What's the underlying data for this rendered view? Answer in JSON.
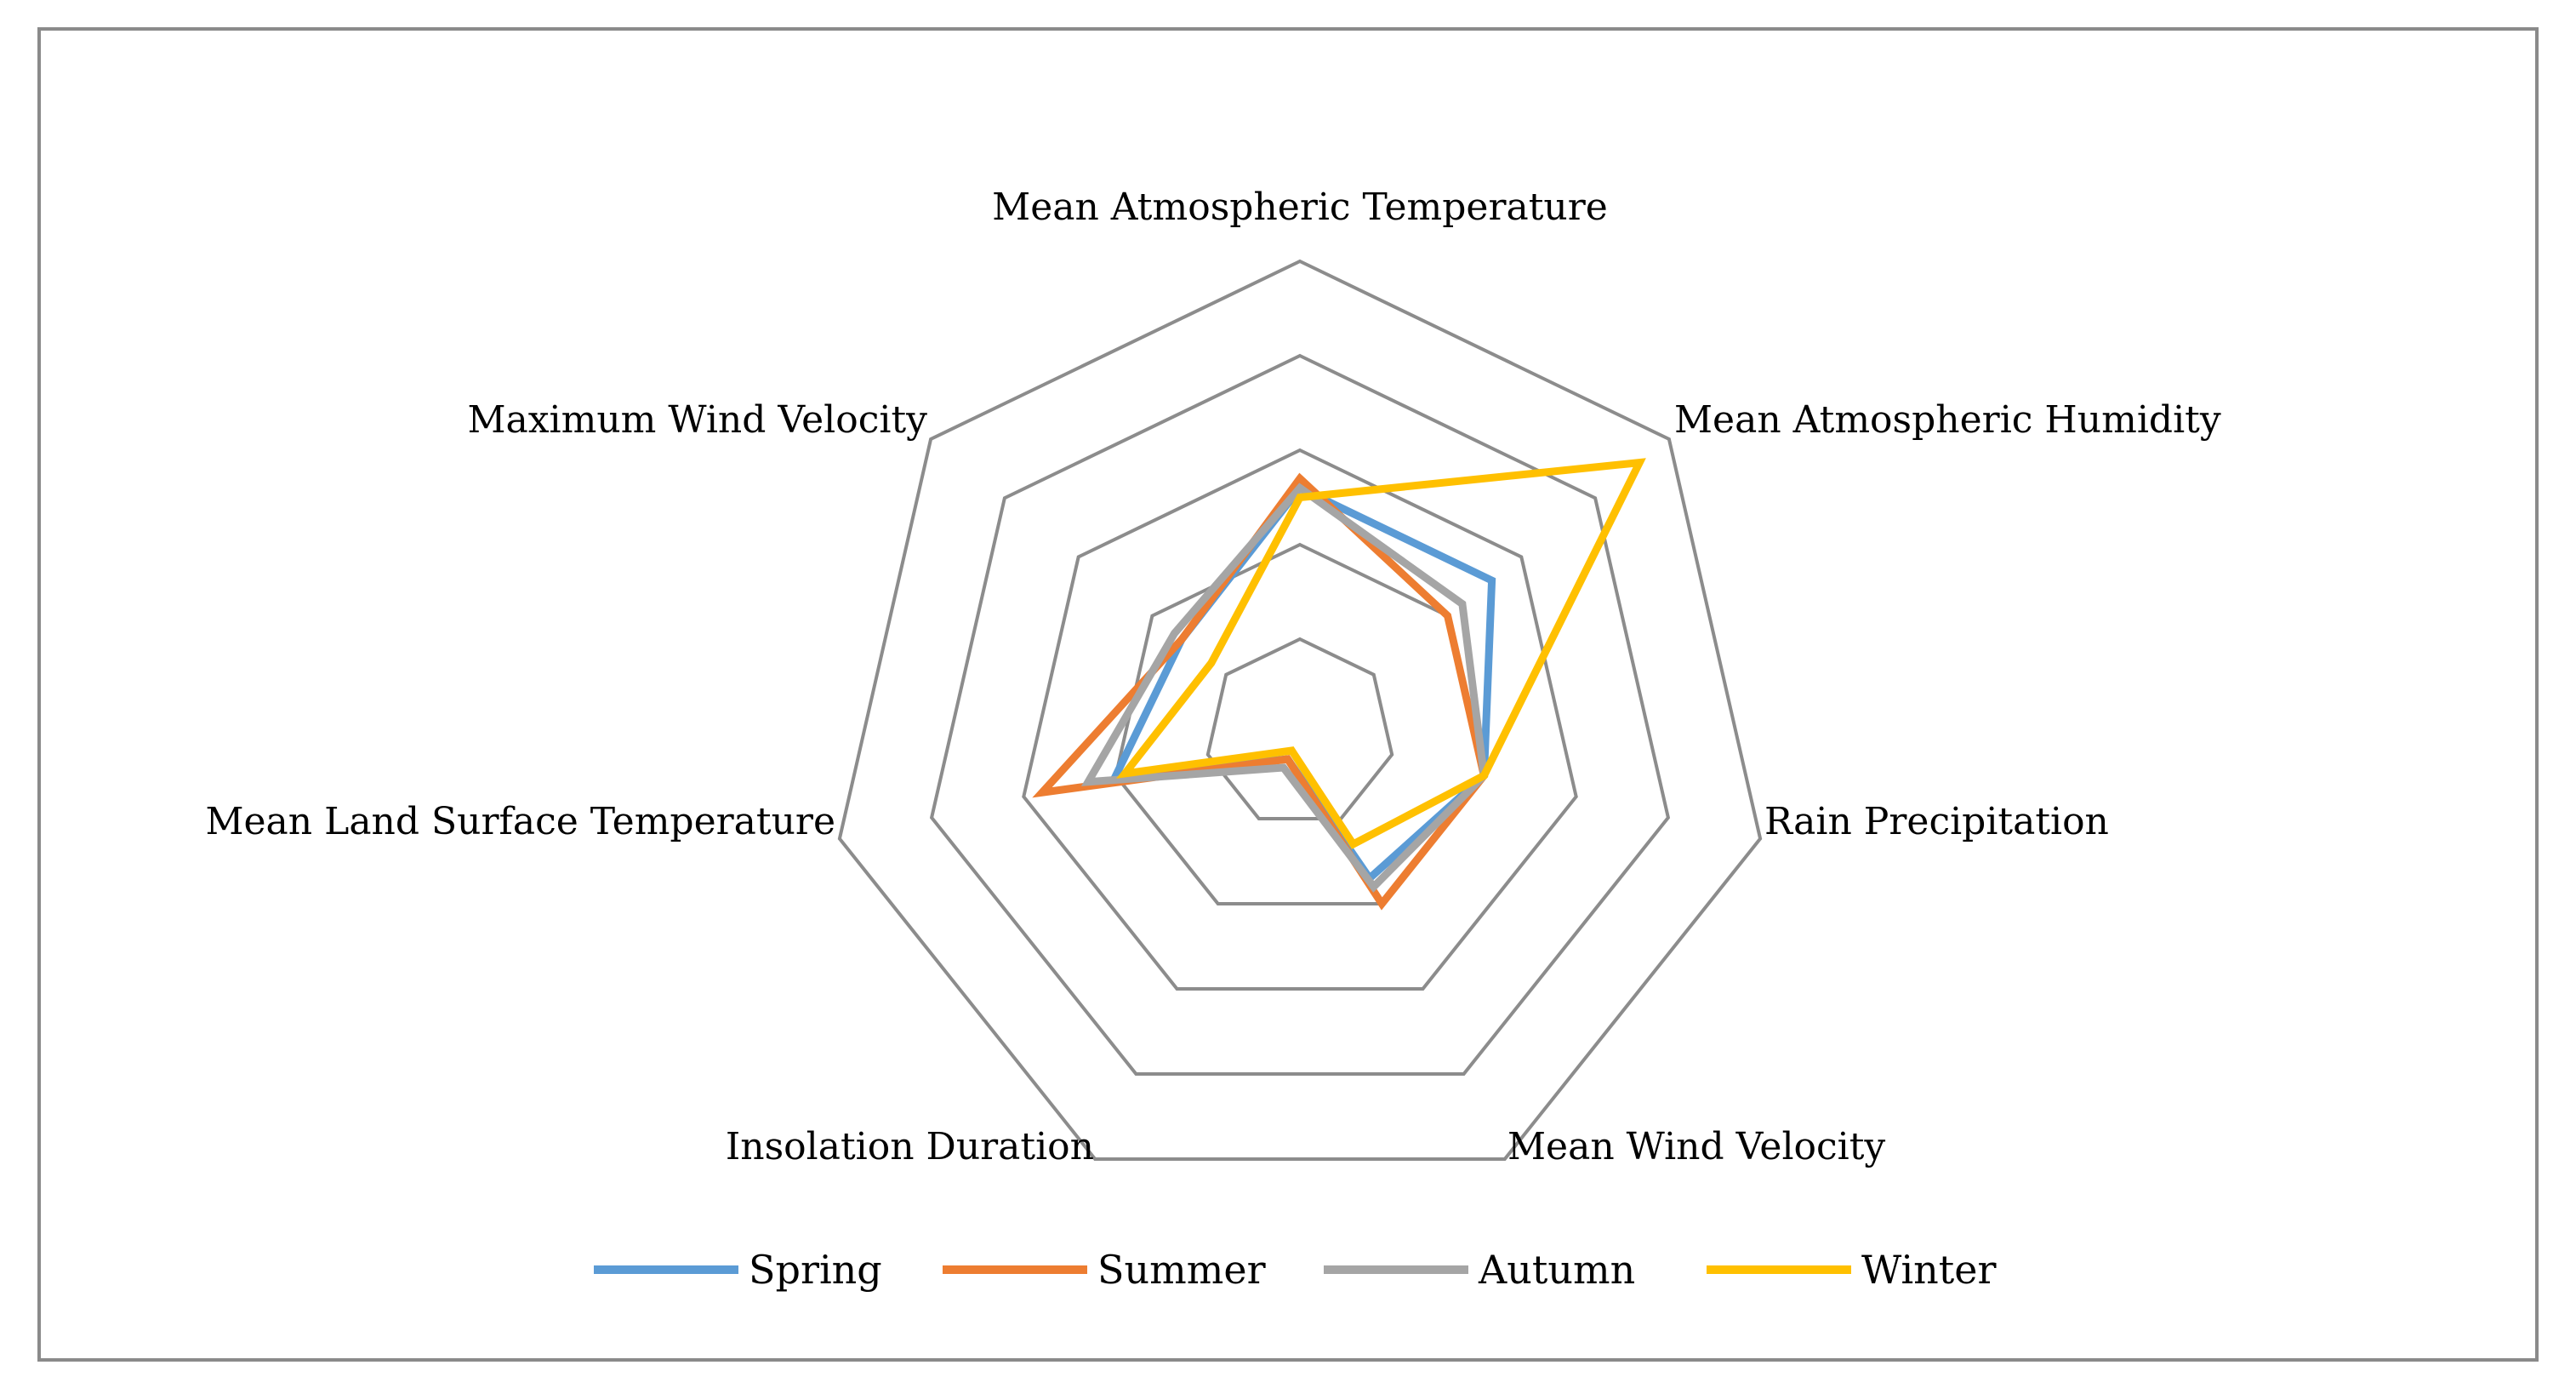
{
  "chart_data": {
    "type": "radar",
    "title": "",
    "axes": [
      "Mean Atmospheric Temperature",
      "Mean Atmospheric Humidity",
      "Rain Precipitation",
      "Mean Wind Velocity",
      "Insolation Duration",
      "Mean Land Surface Temperature",
      "Maximum Wind Velocity"
    ],
    "rmax": 5,
    "rings": 5,
    "grid": true,
    "legend_position": "bottom",
    "series": [
      {
        "name": "Spring",
        "color": "#5B9BD5",
        "values": [
          2.6,
          2.6,
          2.0,
          1.7,
          0.3,
          2.0,
          1.6
        ]
      },
      {
        "name": "Summer",
        "color": "#ED7D31",
        "values": [
          2.7,
          2.0,
          2.0,
          2.0,
          0.3,
          2.8,
          1.6
        ]
      },
      {
        "name": "Autumn",
        "color": "#A5A5A5",
        "values": [
          2.6,
          2.2,
          2.0,
          1.8,
          0.4,
          2.3,
          1.7
        ]
      },
      {
        "name": "Winter",
        "color": "#FFC000",
        "values": [
          2.5,
          4.6,
          2.0,
          1.3,
          0.2,
          1.9,
          1.2
        ]
      }
    ]
  }
}
